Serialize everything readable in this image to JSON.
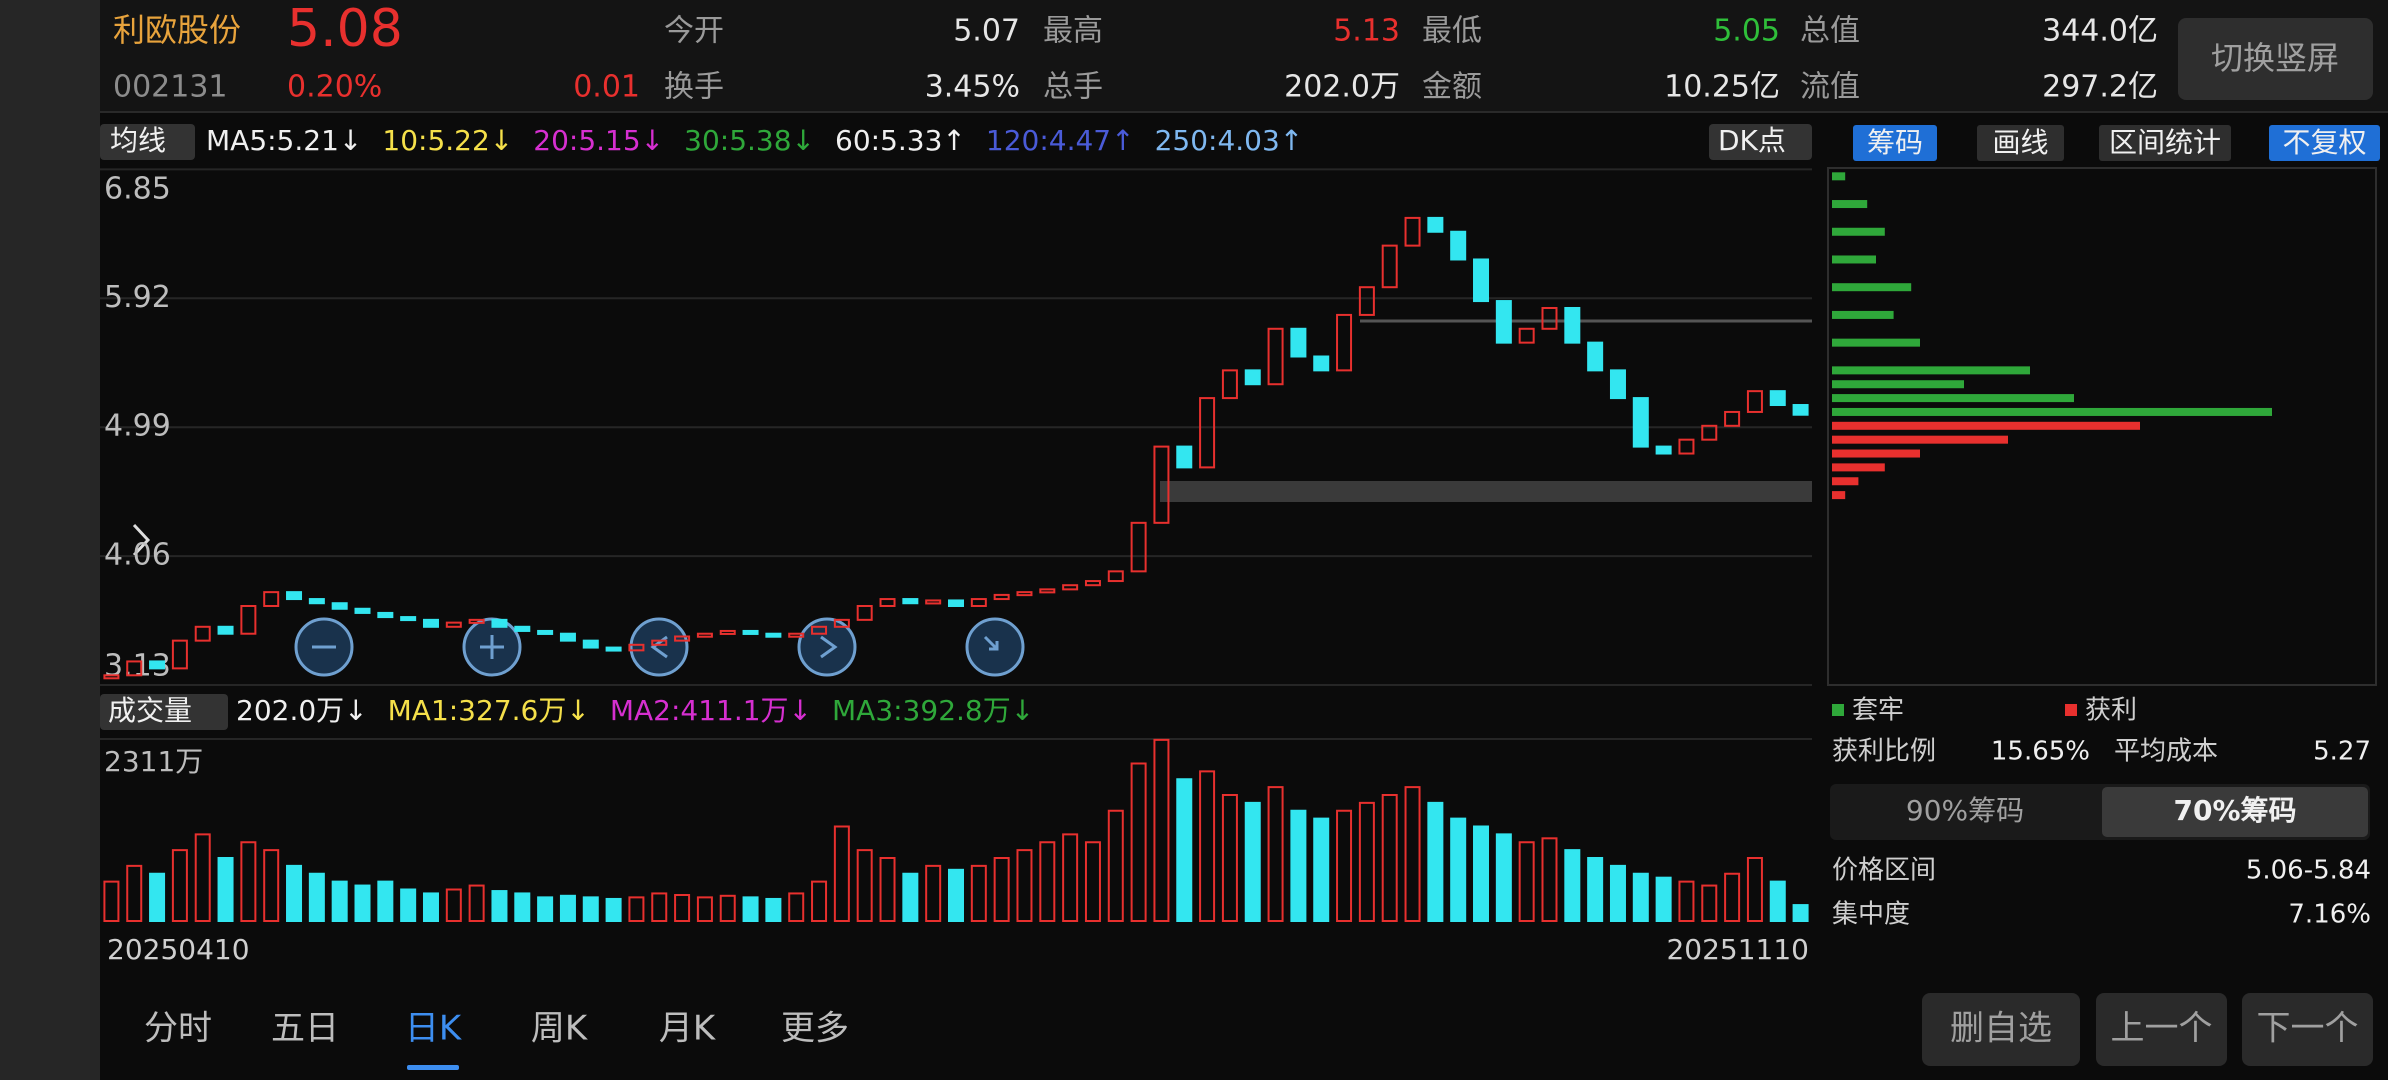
{
  "header": {
    "name": "利欧股份",
    "price": "5.08",
    "code": "002131",
    "change_pct": "0.20%",
    "change": "0.01",
    "fields": [
      {
        "label": "今开",
        "value": "5.07",
        "color": "#e6e6e6"
      },
      {
        "label": "最高",
        "value": "5.13",
        "color": "#e8302e"
      },
      {
        "label": "最低",
        "value": "5.05",
        "color": "#2fbf3a"
      },
      {
        "label": "总值",
        "value": "344.0亿",
        "color": "#e6e6e6"
      },
      {
        "label": "换手",
        "value": "3.45%",
        "color": "#e6e6e6"
      },
      {
        "label": "总手",
        "value": "202.0万",
        "color": "#e6e6e6"
      },
      {
        "label": "金额",
        "value": "10.25亿",
        "color": "#e6e6e6"
      },
      {
        "label": "流值",
        "value": "297.2亿",
        "color": "#e6e6e6"
      }
    ],
    "button": "切换竖屏"
  },
  "indicator": {
    "selector": "均线",
    "items": [
      {
        "text": "MA5:5.21↓",
        "color": "#f0f0f0"
      },
      {
        "text": "10:5.22↓",
        "color": "#f5e04a"
      },
      {
        "text": "20:5.15↓",
        "color": "#d62fd0"
      },
      {
        "text": "30:5.38↓",
        "color": "#2fa83a"
      },
      {
        "text": "60:5.33↑",
        "color": "#f0f0f0"
      },
      {
        "text": "120:4.47↑",
        "color": "#4a5bd8"
      },
      {
        "text": "250:4.03↑",
        "color": "#7fb8f0"
      }
    ],
    "dk": "DK点"
  },
  "tabs": {
    "items": [
      "筹码",
      "画线",
      "区间统计",
      "不复权"
    ],
    "selected": [
      0,
      3
    ]
  },
  "chart_data": [
    {
      "type": "candlestick",
      "up_color": "#e8302e",
      "down_color": "#33e6f0",
      "ylim": [
        3.13,
        6.86
      ],
      "yticks": [
        6.85,
        5.92,
        4.99,
        4.06,
        3.13
      ],
      "grid": true,
      "values": [
        3.2,
        3.3,
        3.25,
        3.45,
        3.55,
        3.5,
        3.7,
        3.8,
        3.75,
        3.72,
        3.68,
        3.65,
        3.62,
        3.6,
        3.55,
        3.58,
        3.6,
        3.55,
        3.52,
        3.5,
        3.45,
        3.4,
        3.38,
        3.42,
        3.45,
        3.48,
        3.5,
        3.52,
        3.5,
        3.48,
        3.5,
        3.55,
        3.6,
        3.7,
        3.75,
        3.72,
        3.74,
        3.7,
        3.75,
        3.78,
        3.8,
        3.82,
        3.85,
        3.88,
        3.95,
        4.3,
        4.85,
        4.7,
        5.2,
        5.4,
        5.3,
        5.7,
        5.5,
        5.4,
        5.8,
        6.0,
        6.3,
        6.5,
        6.4,
        6.2,
        5.9,
        5.6,
        5.7,
        5.85,
        5.6,
        5.4,
        5.2,
        4.85,
        4.8,
        4.9,
        5.0,
        5.1,
        5.25,
        5.15,
        5.08
      ]
    },
    {
      "type": "bar",
      "ylim": [
        0,
        2311
      ],
      "yticks": [
        {
          "value": 2311,
          "label": "2311万"
        }
      ],
      "values": [
        500,
        700,
        600,
        900,
        1100,
        800,
        1000,
        900,
        700,
        600,
        500,
        450,
        500,
        400,
        350,
        400,
        450,
        380,
        350,
        300,
        320,
        300,
        280,
        300,
        350,
        330,
        300,
        320,
        300,
        280,
        350,
        500,
        1200,
        900,
        800,
        600,
        700,
        650,
        700,
        800,
        900,
        1000,
        1100,
        1000,
        1400,
        2000,
        2300,
        1800,
        1900,
        1600,
        1500,
        1700,
        1400,
        1300,
        1400,
        1500,
        1600,
        1700,
        1500,
        1300,
        1200,
        1100,
        1000,
        1050,
        900,
        800,
        700,
        600,
        550,
        500,
        450,
        600,
        800,
        500,
        202
      ]
    },
    {
      "type": "hbar",
      "xlim": [
        0,
        100
      ],
      "series": [
        {
          "name": "套牢",
          "color": "#2fa83a",
          "prices": [
            6.8,
            6.6,
            6.4,
            6.2,
            6.0,
            5.8,
            5.6,
            5.4,
            5.3,
            5.2,
            5.1
          ],
          "values": [
            3,
            8,
            12,
            10,
            18,
            14,
            20,
            45,
            30,
            55,
            100
          ]
        },
        {
          "name": "获利",
          "color": "#e8302e",
          "prices": [
            5.0,
            4.9,
            4.8,
            4.7,
            4.6,
            4.5
          ],
          "values": [
            70,
            40,
            20,
            12,
            6,
            3
          ]
        }
      ]
    }
  ],
  "volume_indicator": {
    "selector": "成交量",
    "items": [
      {
        "text": "202.0万↓",
        "color": "#f0f0f0"
      },
      {
        "text": "MA1:327.6万↓",
        "color": "#f5e04a"
      },
      {
        "text": "MA2:411.1万↓",
        "color": "#d62fd0"
      },
      {
        "text": "MA3:392.8万↓",
        "color": "#2fa83a"
      }
    ]
  },
  "dates": [
    "20250410",
    "20251110"
  ],
  "chips_stats": {
    "profit_ratio_label": "获利比例",
    "profit_ratio": "15.65%",
    "avg_cost_label": "平均成本",
    "avg_cost": "5.27",
    "tabs": [
      "90%筹码",
      "70%筹码"
    ],
    "selected": 1,
    "range_label": "价格区间",
    "range": "5.06-5.84",
    "concentration_label": "集中度",
    "concentration": "7.16%"
  },
  "nav": {
    "items": [
      "分时",
      "五日",
      "日K",
      "周K",
      "月K",
      "更多"
    ],
    "selected": 2,
    "buttons": [
      "删自选",
      "上一个",
      "下一个"
    ]
  }
}
